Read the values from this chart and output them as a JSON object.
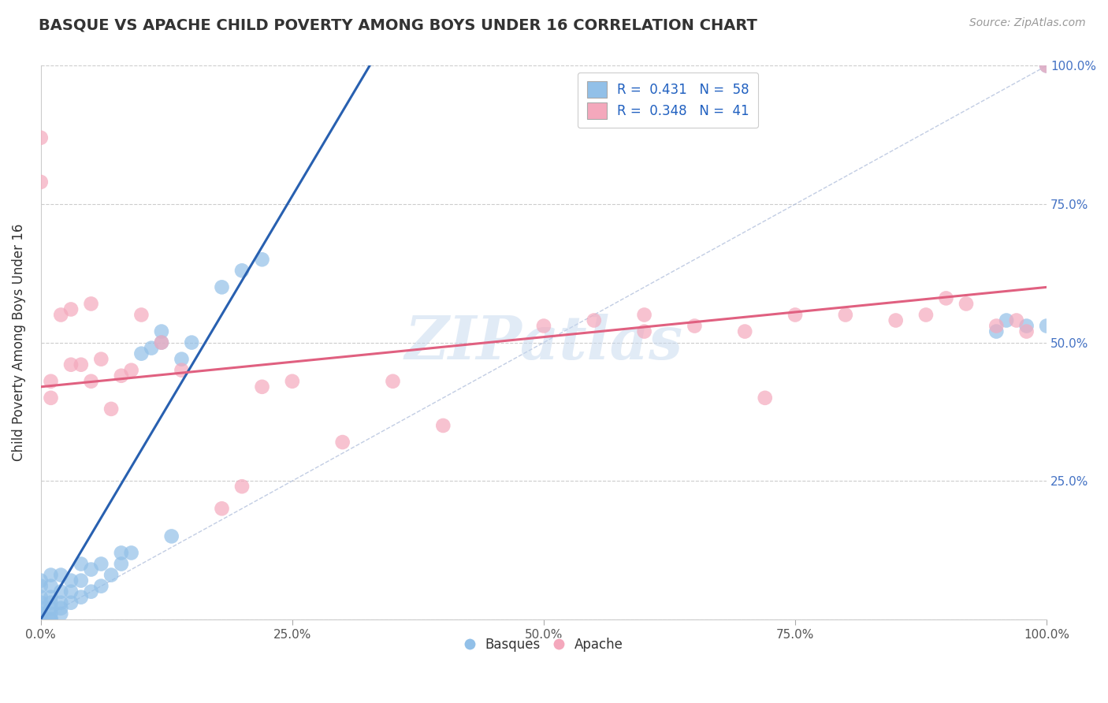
{
  "title": "BASQUE VS APACHE CHILD POVERTY AMONG BOYS UNDER 16 CORRELATION CHART",
  "source": "Source: ZipAtlas.com",
  "ylabel": "Child Poverty Among Boys Under 16",
  "xlabel": "",
  "xlim": [
    0.0,
    1.0
  ],
  "ylim": [
    0.0,
    1.0
  ],
  "xtick_labels": [
    "0.0%",
    "25.0%",
    "50.0%",
    "75.0%",
    "100.0%"
  ],
  "xtick_vals": [
    0.0,
    0.25,
    0.5,
    0.75,
    1.0
  ],
  "ytick_vals_left": [
    0.0,
    0.25,
    0.5,
    0.75,
    1.0
  ],
  "ytick_labels_left": [
    "",
    "",
    "",
    "",
    ""
  ],
  "ytick_vals_right": [
    0.0,
    0.25,
    0.5,
    0.75,
    1.0
  ],
  "ytick_labels_right": [
    "",
    "25.0%",
    "50.0%",
    "75.0%",
    "100.0%"
  ],
  "watermark": "ZIPatlas",
  "basque_color": "#92c0e8",
  "apache_color": "#f4a8bc",
  "basque_line_color": "#2860b0",
  "apache_line_color": "#e06080",
  "diagonal_color": "#a8b8d8",
  "basque_x": [
    0.0,
    0.0,
    0.0,
    0.0,
    0.0,
    0.0,
    0.0,
    0.0,
    0.0,
    0.0,
    0.0,
    0.0,
    0.0,
    0.0,
    0.0,
    0.01,
    0.01,
    0.01,
    0.01,
    0.01,
    0.01,
    0.01,
    0.01,
    0.02,
    0.02,
    0.02,
    0.02,
    0.02,
    0.03,
    0.03,
    0.03,
    0.04,
    0.04,
    0.04,
    0.05,
    0.05,
    0.06,
    0.06,
    0.07,
    0.08,
    0.08,
    0.09,
    0.1,
    0.11,
    0.12,
    0.12,
    0.13,
    0.14,
    0.15,
    0.18,
    0.2,
    0.22,
    0.95,
    0.96,
    0.98,
    1.0,
    1.0
  ],
  "basque_y": [
    0.0,
    0.0,
    0.0,
    0.0,
    0.0,
    0.0,
    0.0,
    0.0,
    0.01,
    0.01,
    0.02,
    0.03,
    0.04,
    0.06,
    0.07,
    0.0,
    0.0,
    0.01,
    0.02,
    0.03,
    0.04,
    0.06,
    0.08,
    0.01,
    0.02,
    0.03,
    0.05,
    0.08,
    0.03,
    0.05,
    0.07,
    0.04,
    0.07,
    0.1,
    0.05,
    0.09,
    0.06,
    0.1,
    0.08,
    0.1,
    0.12,
    0.12,
    0.48,
    0.49,
    0.5,
    0.52,
    0.15,
    0.47,
    0.5,
    0.6,
    0.63,
    0.65,
    0.52,
    0.54,
    0.53,
    0.53,
    1.0
  ],
  "apache_x": [
    0.0,
    0.0,
    0.01,
    0.01,
    0.02,
    0.03,
    0.03,
    0.04,
    0.05,
    0.05,
    0.06,
    0.07,
    0.08,
    0.09,
    0.1,
    0.12,
    0.14,
    0.18,
    0.2,
    0.22,
    0.25,
    0.3,
    0.35,
    0.4,
    0.5,
    0.55,
    0.6,
    0.6,
    0.65,
    0.7,
    0.72,
    0.75,
    0.8,
    0.85,
    0.88,
    0.9,
    0.92,
    0.95,
    0.97,
    0.98,
    1.0
  ],
  "apache_y": [
    0.87,
    0.79,
    0.4,
    0.43,
    0.55,
    0.46,
    0.56,
    0.46,
    0.43,
    0.57,
    0.47,
    0.38,
    0.44,
    0.45,
    0.55,
    0.5,
    0.45,
    0.2,
    0.24,
    0.42,
    0.43,
    0.32,
    0.43,
    0.35,
    0.53,
    0.54,
    0.52,
    0.55,
    0.53,
    0.52,
    0.4,
    0.55,
    0.55,
    0.54,
    0.55,
    0.58,
    0.57,
    0.53,
    0.54,
    0.52,
    1.0
  ],
  "basque_line_x0": 0.0,
  "basque_line_x1": 0.17,
  "basque_line_y0": 0.0,
  "basque_line_y1": 0.52,
  "apache_line_x0": 0.0,
  "apache_line_x1": 1.0,
  "apache_line_y0": 0.42,
  "apache_line_y1": 0.6
}
